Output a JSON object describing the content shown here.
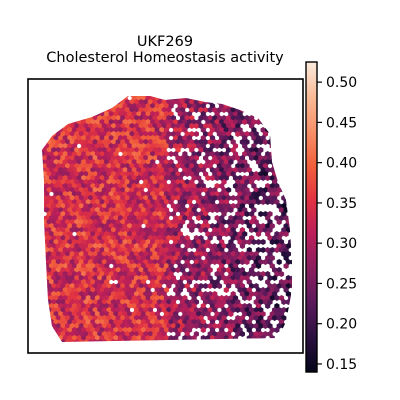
{
  "chart_data": {
    "type": "heatmap",
    "title": "UKF269",
    "subtitle": "Cholesterol Homeostasis activity",
    "colormap": "rocket",
    "colormap_stops": [
      "#03051a",
      "#2b1040",
      "#5a1a5b",
      "#8a1e5e",
      "#b91f5a",
      "#e13342",
      "#f2603c",
      "#f6916a",
      "#f9bb98",
      "#faebdd"
    ],
    "colorbar": {
      "vmin": 0.14,
      "vmax": 0.525,
      "ticks": [
        "0.15",
        "0.20",
        "0.25",
        "0.30",
        "0.35",
        "0.40",
        "0.45",
        "0.50"
      ]
    },
    "x_axis_visible": false,
    "y_axis_visible": false,
    "spot_shape": "hexagon",
    "value_trend": "higher activity (0.30–0.45) across the left half of the tissue, lower activity (0.15–0.28) and sparse spots on the right half"
  }
}
